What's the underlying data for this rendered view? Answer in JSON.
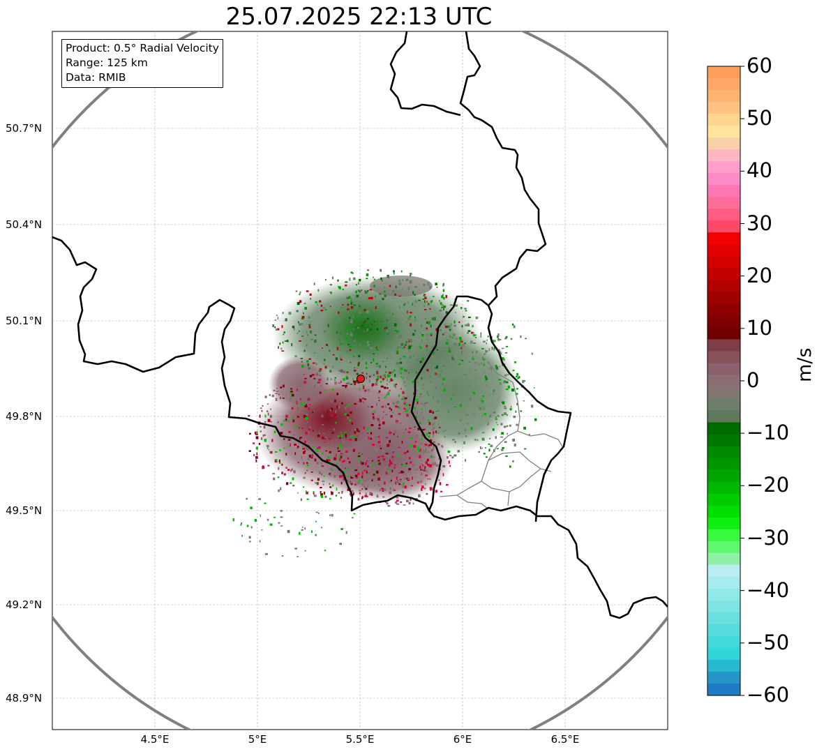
{
  "title": "25.07.2025 22:13 UTC",
  "info": {
    "product": "Product: 0.5° Radial Velocity",
    "range": "Range: 125 km",
    "data": "Data: RMIB"
  },
  "map": {
    "lat_labels": [
      "50.7°N",
      "50.4°N",
      "50.1°N",
      "49.8°N",
      "49.5°N",
      "49.2°N",
      "48.9°N"
    ],
    "lon_labels": [
      "4.5°E",
      "5°E",
      "5.5°E",
      "6°E",
      "6.5°E"
    ],
    "radar_site": {
      "lon": 5.505,
      "lat": 49.914
    },
    "range_ring_color": "#808080",
    "border_color": "#000000",
    "region_border_color": "#808080"
  },
  "colorbar": {
    "label": "m/s",
    "min": -60,
    "max": 60,
    "ticks": [
      "60",
      "50",
      "40",
      "30",
      "20",
      "10",
      "0",
      "−10",
      "−20",
      "−30",
      "−40",
      "−50",
      "−60"
    ],
    "colors": [
      "#ff9d5a",
      "#ffa766",
      "#ffb570",
      "#ffc282",
      "#ffd690",
      "#ffe59e",
      "#fad0a8",
      "#ffb6c0",
      "#ff9ec8",
      "#ff8ac9",
      "#ff78b4",
      "#ff6e9a",
      "#ff5c82",
      "#ff4868",
      "#f40000",
      "#e50000",
      "#d40000",
      "#c40000",
      "#b00000",
      "#a00000",
      "#8f0000",
      "#7e0000",
      "#700000",
      "#7e3e48",
      "#885058",
      "#8c606c",
      "#8a6e74",
      "#827670",
      "#6e7e6a",
      "#5e7a5a",
      "#006a00",
      "#007800",
      "#008800",
      "#009600",
      "#00a600",
      "#00b800",
      "#00cc00",
      "#00e000",
      "#10f010",
      "#38f840",
      "#60f870",
      "#90f0a8",
      "#b8eef0",
      "#a6ecee",
      "#92e8e8",
      "#7ee4e4",
      "#6adfe0",
      "#56dcdc",
      "#42d9da",
      "#30d6d8",
      "#28b8d0",
      "#2496c8",
      "#1e7cc4"
    ]
  }
}
